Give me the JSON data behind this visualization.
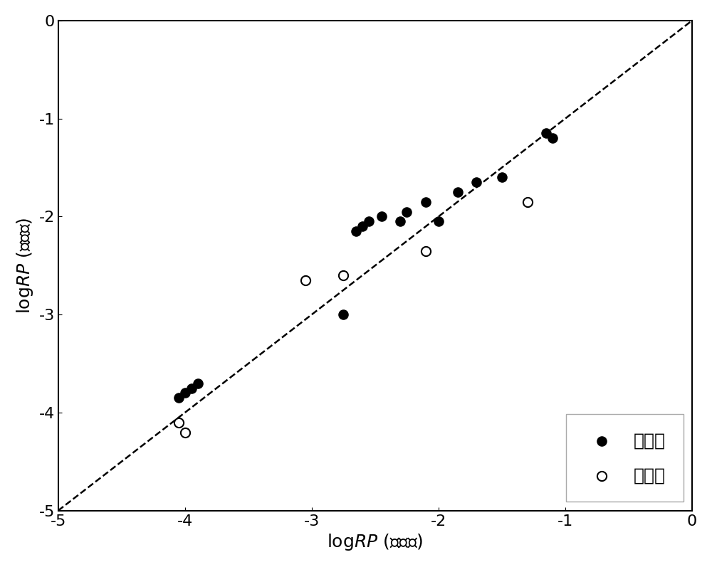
{
  "train_x": [
    -4.05,
    -4.0,
    -3.95,
    -3.9,
    -2.75,
    -2.65,
    -2.6,
    -2.55,
    -2.45,
    -2.3,
    -2.25,
    -2.1,
    -2.0,
    -1.85,
    -1.7,
    -1.5,
    -1.15,
    -1.1
  ],
  "train_y": [
    -3.85,
    -3.8,
    -3.75,
    -3.7,
    -3.0,
    -2.15,
    -2.1,
    -2.05,
    -2.0,
    -2.05,
    -1.95,
    -1.85,
    -2.05,
    -1.75,
    -1.65,
    -1.6,
    -1.15,
    -1.2
  ],
  "val_x": [
    -4.05,
    -4.0,
    -3.05,
    -2.75,
    -2.1,
    -1.3
  ],
  "val_y": [
    -4.1,
    -4.2,
    -2.65,
    -2.6,
    -2.35,
    -1.85
  ],
  "xlim": [
    -5,
    0
  ],
  "ylim": [
    -5,
    0
  ],
  "xticks": [
    -5,
    -4,
    -3,
    -2,
    -1,
    0
  ],
  "yticks": [
    -5,
    -4,
    -3,
    -2,
    -1,
    0
  ],
  "marker_size": 90,
  "background_color": "#ffffff",
  "label_fontsize": 18,
  "tick_fontsize": 16
}
